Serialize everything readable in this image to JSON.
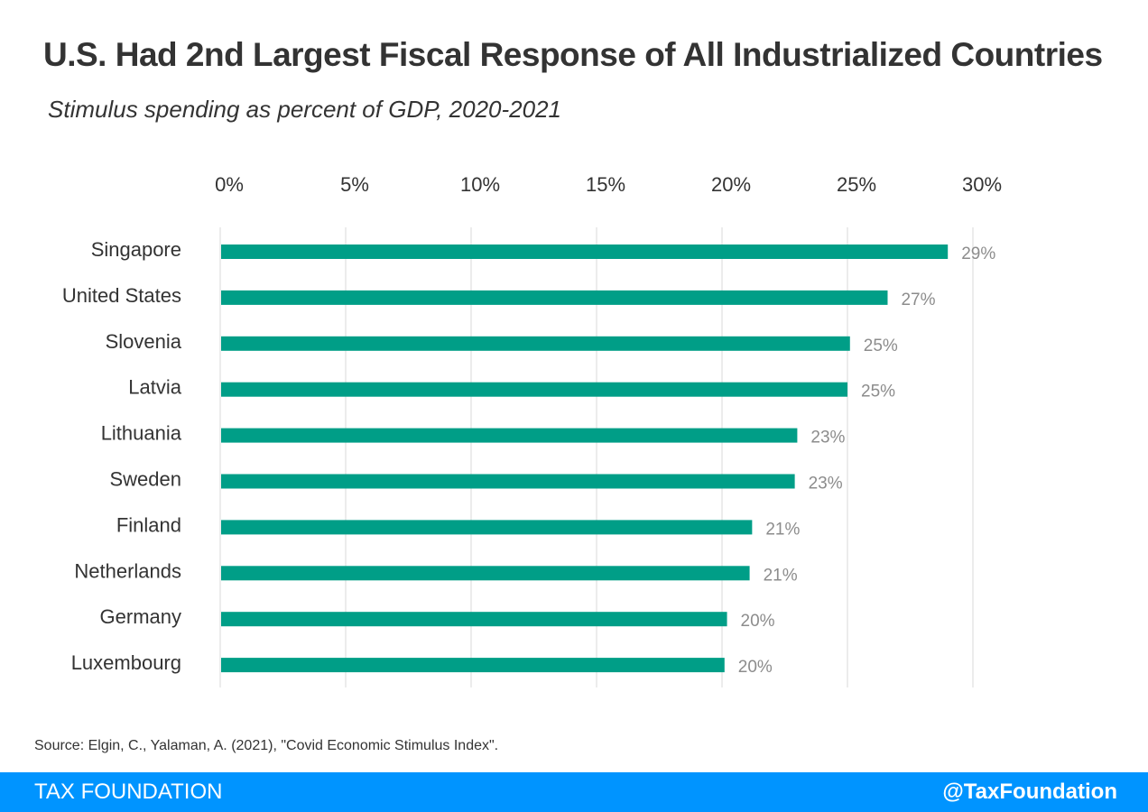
{
  "title": "U.S. Had 2nd Largest Fiscal Response of All Industrialized Countries",
  "subtitle": "Stimulus spending as percent of GDP, 2020-2021",
  "source": "Source: Elgin, C., Yalaman, A. (2021), \"Covid Economic Stimulus Index\".",
  "footer": {
    "brand": "TAX FOUNDATION",
    "handle": "@TaxFoundation"
  },
  "colors": {
    "bar": "#009e87",
    "footer_bg": "#0094ff",
    "gridline": "#d9d9d9",
    "data_label": "#8c8c8c",
    "text": "#333333"
  },
  "chart_data": {
    "type": "bar",
    "orientation": "horizontal",
    "categories": [
      "Singapore",
      "United States",
      "Slovenia",
      "Latvia",
      "Lithuania",
      "Sweden",
      "Finland",
      "Netherlands",
      "Germany",
      "Luxembourg"
    ],
    "values": [
      29.0,
      26.6,
      25.1,
      25.0,
      23.0,
      22.9,
      21.2,
      21.1,
      20.2,
      20.1
    ],
    "data_labels": [
      "29%",
      "27%",
      "25%",
      "25%",
      "23%",
      "23%",
      "21%",
      "21%",
      "20%",
      "20%"
    ],
    "xlim": [
      0,
      30
    ],
    "x_ticks": [
      0,
      5,
      10,
      15,
      20,
      25,
      30
    ],
    "x_tick_labels": [
      "0%",
      "5%",
      "10%",
      "15%",
      "20%",
      "25%",
      "30%"
    ],
    "x_axis_position": "top",
    "grid": true,
    "legend": "none"
  }
}
